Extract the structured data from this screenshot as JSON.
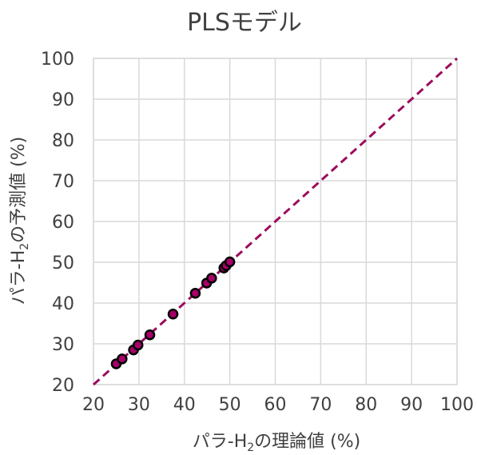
{
  "chart_data": {
    "type": "scatter",
    "title": "PLSモデル",
    "xlabel_main": "パラ-H",
    "xlabel_sub": "2",
    "xlabel_tail": "の理論値 (%)",
    "ylabel_main": "パラ-H",
    "ylabel_sub": "2",
    "ylabel_tail": "の予測値 (%)",
    "xlim": [
      20,
      100
    ],
    "ylim": [
      20,
      100
    ],
    "xticks": [
      "20",
      "30",
      "40",
      "50",
      "60",
      "70",
      "80",
      "90",
      "100"
    ],
    "yticks": [
      "20",
      "30",
      "40",
      "50",
      "60",
      "70",
      "80",
      "90",
      "100"
    ],
    "grid": true,
    "reference_line": {
      "from": [
        20,
        20
      ],
      "to": [
        100,
        100
      ],
      "style": "dashed",
      "color": "#9b0d5d"
    },
    "marker_color": "#a8006a",
    "series": [
      {
        "x": [
          25.0,
          26.3,
          28.8,
          29.8,
          32.4,
          37.5,
          42.4,
          44.9,
          46.0,
          48.7,
          49.2,
          50.0
        ],
        "y": [
          25.1,
          26.3,
          28.5,
          29.7,
          32.2,
          37.3,
          42.4,
          44.9,
          46.1,
          48.6,
          49.2,
          50.1
        ]
      }
    ]
  }
}
